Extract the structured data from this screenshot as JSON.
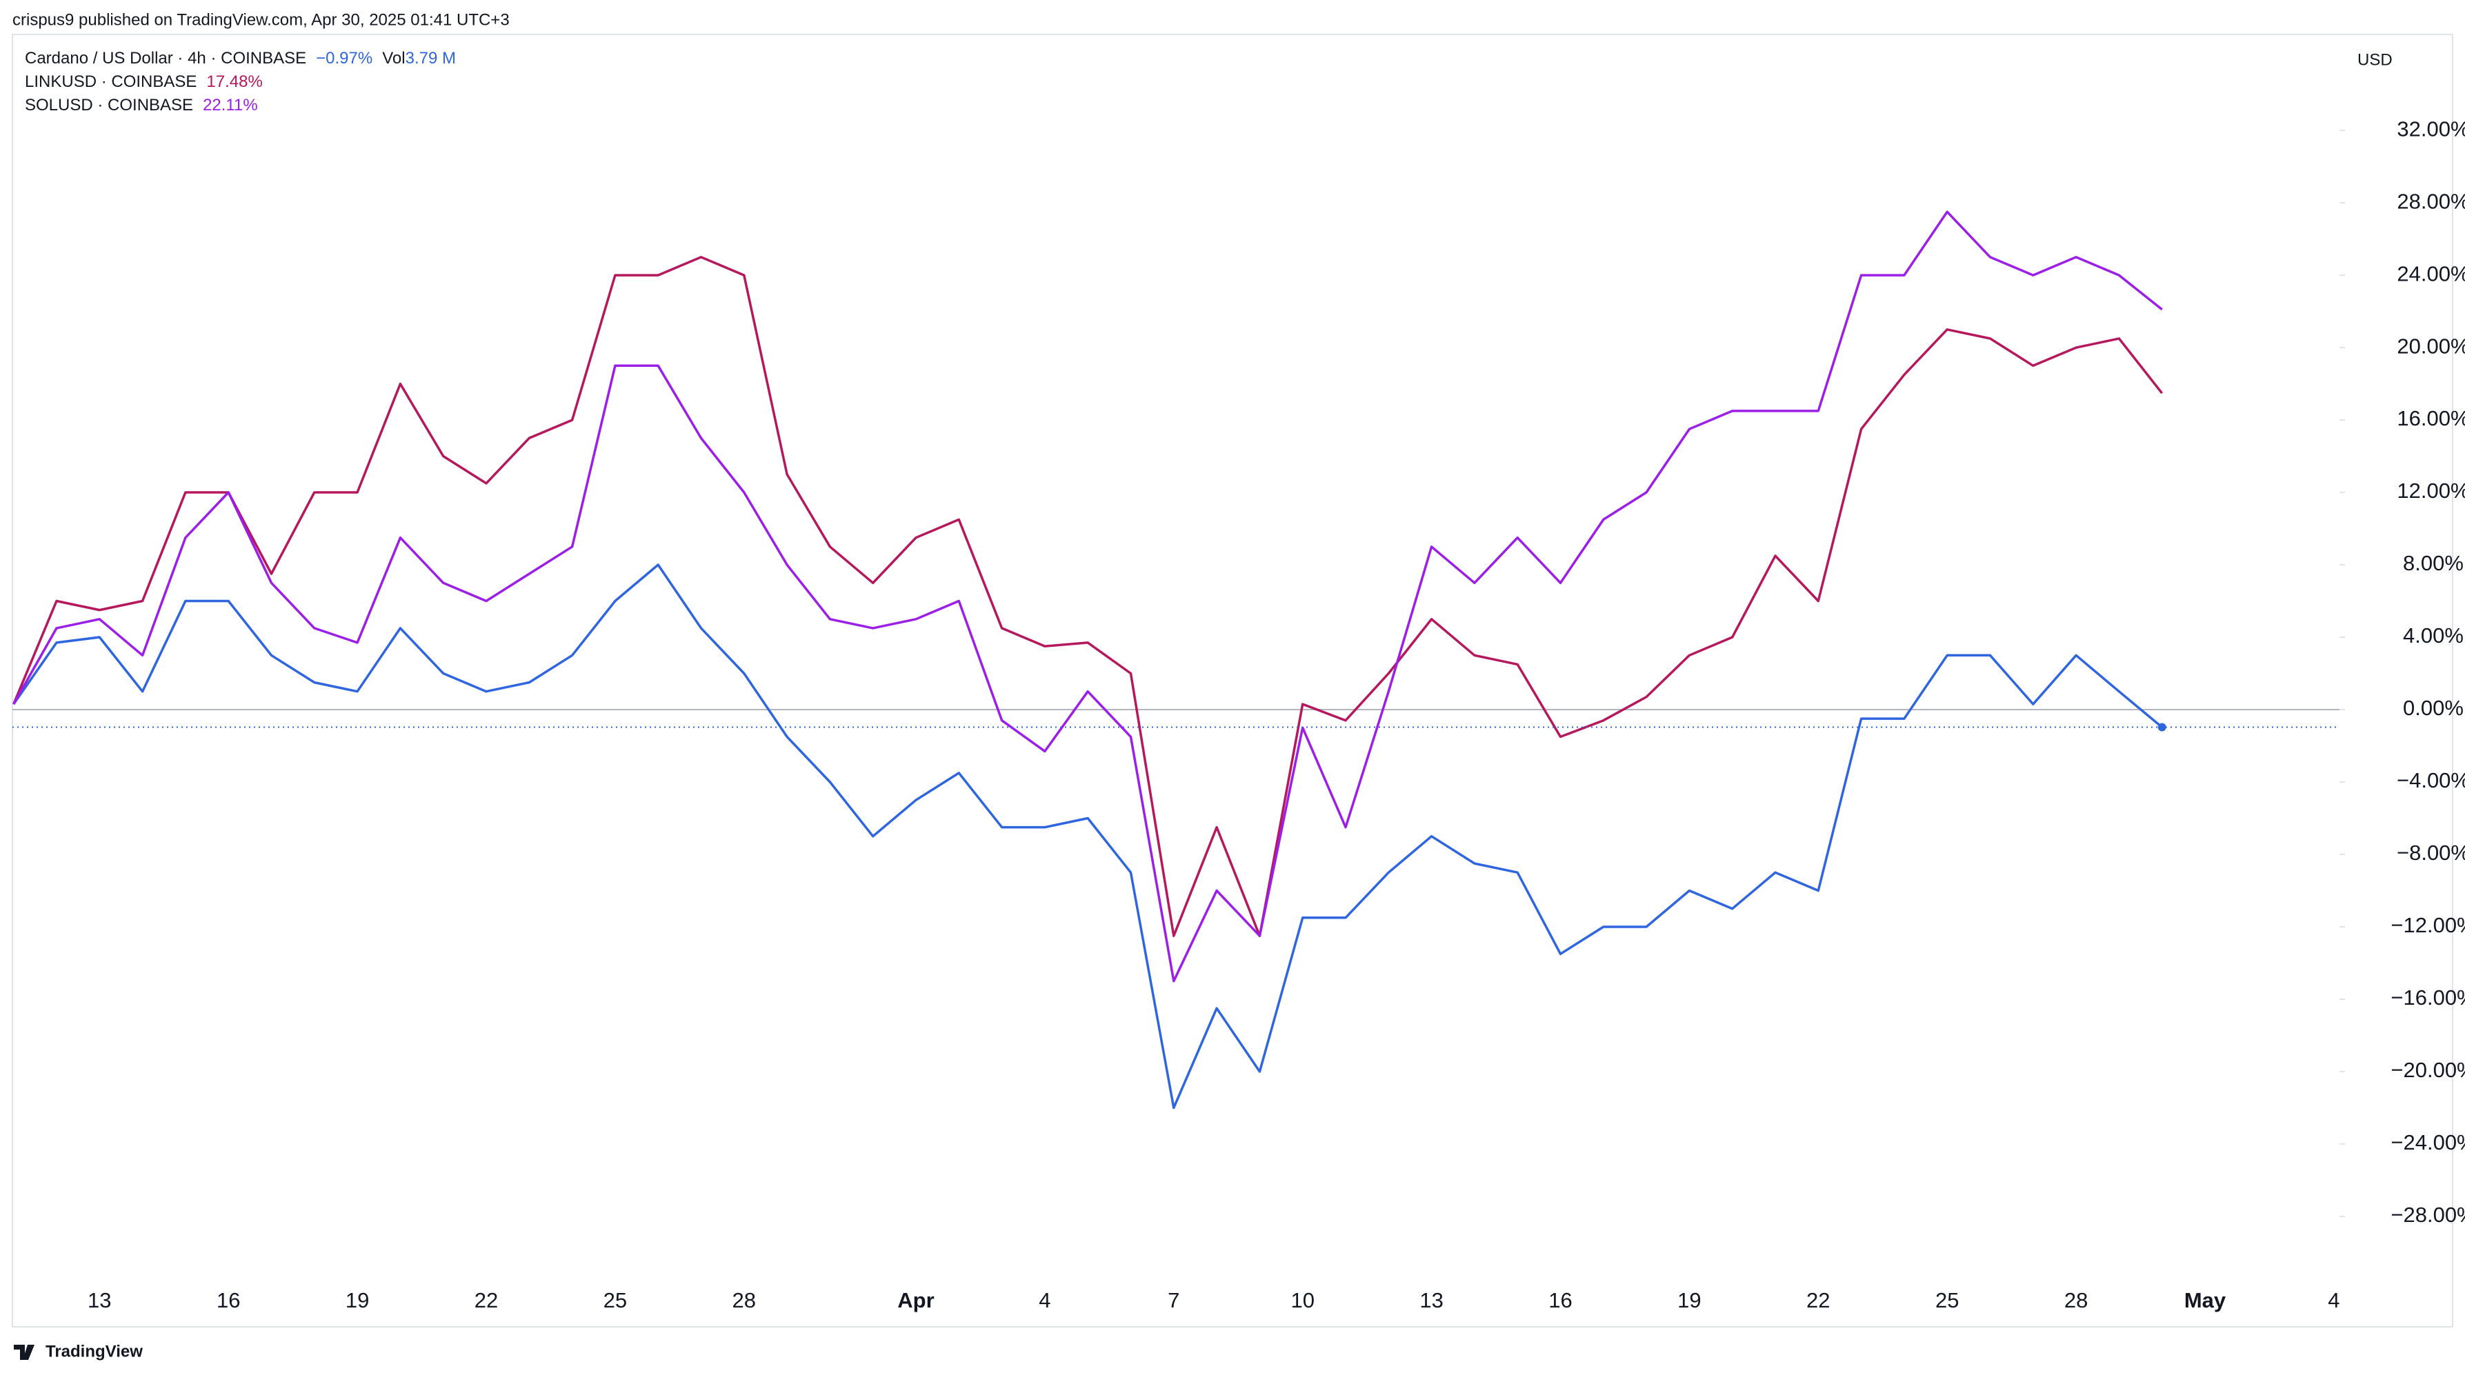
{
  "header": {
    "published": "crispus9 published on TradingView.com, Apr 30, 2025 01:41 UTC+3"
  },
  "footer": {
    "brand": "TradingView"
  },
  "chart_data": {
    "type": "line",
    "currency": "USD",
    "categories": [
      "Mar 11",
      "Mar 12",
      "Mar 13",
      "Mar 14",
      "Mar 15",
      "Mar 16",
      "Mar 17",
      "Mar 18",
      "Mar 19",
      "Mar 20",
      "Mar 21",
      "Mar 22",
      "Mar 23",
      "Mar 24",
      "Mar 25",
      "Mar 26",
      "Mar 27",
      "Mar 28",
      "Mar 29",
      "Mar 30",
      "Mar 31",
      "Apr 1",
      "Apr 2",
      "Apr 3",
      "Apr 4",
      "Apr 5",
      "Apr 6",
      "Apr 7",
      "Apr 8",
      "Apr 9",
      "Apr 10",
      "Apr 11",
      "Apr 12",
      "Apr 13",
      "Apr 14",
      "Apr 15",
      "Apr 16",
      "Apr 17",
      "Apr 18",
      "Apr 19",
      "Apr 20",
      "Apr 21",
      "Apr 22",
      "Apr 23",
      "Apr 24",
      "Apr 25",
      "Apr 26",
      "Apr 27",
      "Apr 28",
      "Apr 29",
      "Apr 30",
      "May 1",
      "May 2",
      "May 3",
      "May 4"
    ],
    "xticks": [
      {
        "value": "Mar 13",
        "label": "13"
      },
      {
        "value": "Mar 16",
        "label": "16"
      },
      {
        "value": "Mar 19",
        "label": "19"
      },
      {
        "value": "Mar 22",
        "label": "22"
      },
      {
        "value": "Mar 25",
        "label": "25"
      },
      {
        "value": "Mar 28",
        "label": "28"
      },
      {
        "value": "Apr 1",
        "label": "Apr"
      },
      {
        "value": "Apr 4",
        "label": "4"
      },
      {
        "value": "Apr 7",
        "label": "7"
      },
      {
        "value": "Apr 10",
        "label": "10"
      },
      {
        "value": "Apr 13",
        "label": "13"
      },
      {
        "value": "Apr 16",
        "label": "16"
      },
      {
        "value": "Apr 19",
        "label": "19"
      },
      {
        "value": "Apr 22",
        "label": "22"
      },
      {
        "value": "Apr 25",
        "label": "25"
      },
      {
        "value": "Apr 28",
        "label": "28"
      },
      {
        "value": "May 1",
        "label": "May"
      },
      {
        "value": "May 4",
        "label": "4"
      }
    ],
    "ylim": [
      -34.1,
      37.3
    ],
    "yticks": [
      {
        "value": -28,
        "label": "−28.00%"
      },
      {
        "value": -24,
        "label": "−24.00%"
      },
      {
        "value": -20,
        "label": "−20.00%"
      },
      {
        "value": -16,
        "label": "−16.00%"
      },
      {
        "value": -12,
        "label": "−12.00%"
      },
      {
        "value": -8,
        "label": "−8.00%"
      },
      {
        "value": -4,
        "label": "−4.00%"
      },
      {
        "value": 0,
        "label": "0.00%"
      },
      {
        "value": 4,
        "label": "4.00%"
      },
      {
        "value": 8,
        "label": "8.00%"
      },
      {
        "value": 12,
        "label": "12.00%"
      },
      {
        "value": 16,
        "label": "16.00%"
      },
      {
        "value": 20,
        "label": "20.00%"
      },
      {
        "value": 24,
        "label": "24.00%"
      },
      {
        "value": 28,
        "label": "28.00%"
      },
      {
        "value": 32,
        "label": "32.00%"
      }
    ],
    "grid": false,
    "series": [
      {
        "name": "Cardano / US Dollar · 4h · COINBASE",
        "color": "#2f66e0",
        "last_label": "−0.97%",
        "volume_label": "Vol",
        "volume": "3.79 M",
        "values": [
          0.3,
          3.7,
          4,
          1,
          6,
          6,
          3,
          1.5,
          1,
          4.5,
          2,
          1,
          1.5,
          3,
          6,
          8,
          4.5,
          2,
          -1.5,
          -4,
          -7,
          -5,
          -3.5,
          -6.5,
          -6.5,
          -6,
          -9,
          -22,
          -16.5,
          -20,
          -11.5,
          -11.5,
          -9,
          -7,
          -8.5,
          -9,
          -13.5,
          -12,
          -12,
          -10,
          -11,
          -9,
          -10,
          -0.5,
          -0.5,
          3,
          3,
          0.3,
          3,
          1,
          -0.97,
          null,
          null,
          null,
          null
        ]
      },
      {
        "name": "LINKUSD · COINBASE",
        "color": "#b5185c",
        "last_label": "17.48%",
        "values": [
          0.3,
          6,
          5.5,
          6,
          12,
          12,
          7.5,
          12,
          12,
          18,
          14,
          12.5,
          15,
          16,
          24,
          24,
          25,
          24,
          13,
          9,
          7,
          9.5,
          10.5,
          4.5,
          3.5,
          3.7,
          2,
          -12.5,
          -6.5,
          -12.5,
          0.3,
          -0.6,
          2,
          5,
          3,
          2.5,
          -1.5,
          -0.6,
          0.7,
          3,
          4,
          8.5,
          6,
          15.5,
          18.5,
          21,
          20.5,
          19,
          20,
          20.5,
          17.48,
          null,
          null,
          null,
          null
        ]
      },
      {
        "name": "SOLUSD · COINBASE",
        "color": "#9c1fe8",
        "last_label": "22.11%",
        "values": [
          0.3,
          4.5,
          5,
          3,
          9.5,
          12,
          7,
          4.5,
          3.7,
          9.5,
          7,
          6,
          7.5,
          9,
          19,
          19,
          15,
          12,
          8,
          5,
          4.5,
          5,
          6,
          -0.6,
          -2.3,
          1,
          -1.5,
          -15,
          -10,
          -12.5,
          -1,
          -6.5,
          1,
          9,
          7,
          9.5,
          7,
          10.5,
          12,
          15.5,
          16.5,
          16.5,
          16.5,
          24,
          24,
          27.5,
          25,
          24,
          25,
          24,
          22.11,
          null,
          null,
          null,
          null
        ]
      }
    ]
  }
}
